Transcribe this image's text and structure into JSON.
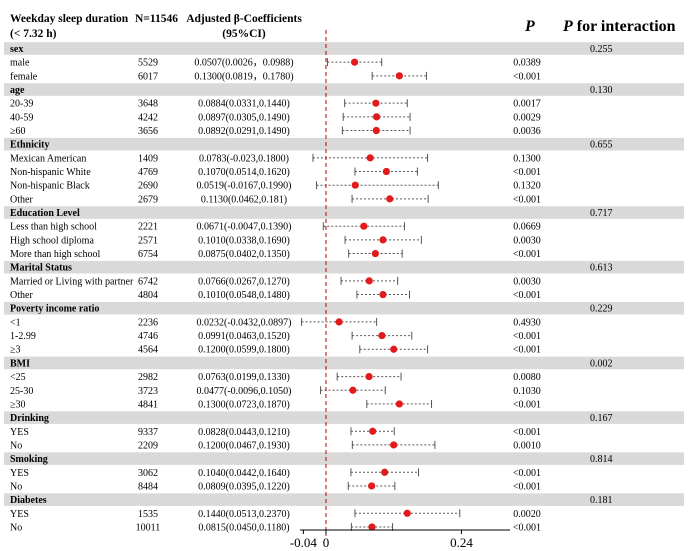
{
  "chart_data": {
    "type": "forest",
    "headers": {
      "col1_line1": "Weekday sleep duration",
      "col1_line2": "(< 7.32 h)",
      "col2": "N=11546",
      "col3_line1": "Adjusted β-Coefficients",
      "col3_line2": "(95%CI)",
      "col4": "P",
      "col5_prefix": "P",
      "col5_suffix": " for interaction"
    },
    "x_ticks": [
      "-0.04",
      "0",
      "0.24"
    ],
    "x_tick_values": [
      -0.04,
      0,
      0.24
    ],
    "xlim": [
      -0.046,
      0.326
    ],
    "reference_line": 0,
    "colors": {
      "group_band": "#d9d9d9",
      "point": "#e31a1c",
      "ci_line": "#555555",
      "reference_line": "#c00000"
    },
    "groups": [
      {
        "name": "sex",
        "p_interaction": "0.255",
        "rows": [
          {
            "label": "male",
            "n": "5529",
            "ci_text": "0.0507(0.0026，0.0988)",
            "beta": 0.0507,
            "lo": 0.0026,
            "hi": 0.0988,
            "p": "0.0389"
          },
          {
            "label": "female",
            "n": "6017",
            "ci_text": "0.1300(0.0819，0.1780)",
            "beta": 0.13,
            "lo": 0.0819,
            "hi": 0.178,
            "p": "<0.001"
          }
        ]
      },
      {
        "name": "age",
        "p_interaction": "0.130",
        "rows": [
          {
            "label": "20-39",
            "n": "3648",
            "ci_text": "0.0884(0.0331,0.1440)",
            "beta": 0.0884,
            "lo": 0.0331,
            "hi": 0.144,
            "p": "0.0017"
          },
          {
            "label": "40-59",
            "n": "4242",
            "ci_text": "0.0897(0.0305,0.1490)",
            "beta": 0.0897,
            "lo": 0.0305,
            "hi": 0.149,
            "p": "0.0029"
          },
          {
            "label": "≥60",
            "n": "3656",
            "ci_text": "0.0892(0.0291,0.1490)",
            "beta": 0.0892,
            "lo": 0.0291,
            "hi": 0.149,
            "p": "0.0036"
          }
        ]
      },
      {
        "name": "Ethnicity",
        "p_interaction": "0.655",
        "rows": [
          {
            "label": "Mexican American",
            "n": "1409",
            "ci_text": "0.0783(-0.023,0.1800)",
            "beta": 0.0783,
            "lo": -0.023,
            "hi": 0.18,
            "p": "0.1300"
          },
          {
            "label": "Non-hispanic White",
            "n": "4769",
            "ci_text": "0.1070(0.0514,0.1620)",
            "beta": 0.107,
            "lo": 0.0514,
            "hi": 0.162,
            "p": "<0.001"
          },
          {
            "label": "Non-hispanic Black",
            "n": "2690",
            "ci_text": "0.0519(-0.0167,0.1990)",
            "beta": 0.0519,
            "lo": -0.0167,
            "hi": 0.199,
            "p": "0.1320"
          },
          {
            "label": "Other",
            "n": "2679",
            "ci_text": "0.1130(0.0462,0.181)",
            "beta": 0.113,
            "lo": 0.0462,
            "hi": 0.181,
            "p": "<0.001"
          }
        ]
      },
      {
        "name": "Education Level",
        "p_interaction": "0.717",
        "rows": [
          {
            "label": "Less than high school",
            "n": "2221",
            "ci_text": "0.0671(-0.0047,0.1390)",
            "beta": 0.0671,
            "lo": -0.0047,
            "hi": 0.139,
            "p": "0.0669"
          },
          {
            "label": "High school diploma",
            "n": "2571",
            "ci_text": "0.1010(0.0338,0.1690)",
            "beta": 0.101,
            "lo": 0.0338,
            "hi": 0.169,
            "p": "0.0030"
          },
          {
            "label": "More than high school",
            "n": "6754",
            "ci_text": "0.0875(0.0402,0.1350)",
            "beta": 0.0875,
            "lo": 0.0402,
            "hi": 0.135,
            "p": "<0.001"
          }
        ]
      },
      {
        "name": "Marital Status",
        "p_interaction": "0.613",
        "rows": [
          {
            "label": "Married or Living with partner",
            "n": "6742",
            "ci_text": "0.0766(0.0267,0.1270)",
            "beta": 0.0766,
            "lo": 0.0267,
            "hi": 0.127,
            "p": "0.0030"
          },
          {
            "label": "Other",
            "n": "4804",
            "ci_text": "0.1010(0.0548,0.1480)",
            "beta": 0.101,
            "lo": 0.0548,
            "hi": 0.148,
            "p": "<0.001"
          }
        ]
      },
      {
        "name": "Poverty income ratio",
        "p_interaction": "0.229",
        "rows": [
          {
            "label": "<1",
            "n": "2236",
            "ci_text": "0.0232(-0.0432,0.0897)",
            "beta": 0.0232,
            "lo": -0.0432,
            "hi": 0.0897,
            "p": "0.4930"
          },
          {
            "label": "1-2.99",
            "n": "4746",
            "ci_text": "0.0991(0.0463,0.1520)",
            "beta": 0.0991,
            "lo": 0.0463,
            "hi": 0.152,
            "p": "<0.001"
          },
          {
            "label": "≥3",
            "n": "4564",
            "ci_text": "0.1200(0.0599,0.1800)",
            "beta": 0.12,
            "lo": 0.0599,
            "hi": 0.18,
            "p": "<0.001"
          }
        ]
      },
      {
        "name": "BMI",
        "p_interaction": "0.002",
        "rows": [
          {
            "label": "<25",
            "n": "2982",
            "ci_text": "0.0763(0.0199,0.1330)",
            "beta": 0.0763,
            "lo": 0.0199,
            "hi": 0.133,
            "p": "0.0080"
          },
          {
            "label": "25-30",
            "n": "3723",
            "ci_text": "0.0477(-0.0096,0.1050)",
            "beta": 0.0477,
            "lo": -0.0096,
            "hi": 0.105,
            "p": "0.1030"
          },
          {
            "label": "≥30",
            "n": "4841",
            "ci_text": "0.1300(0.0723,0.1870)",
            "beta": 0.13,
            "lo": 0.0723,
            "hi": 0.187,
            "p": "<0.001"
          }
        ]
      },
      {
        "name": "Drinking",
        "p_interaction": "0.167",
        "rows": [
          {
            "label": "YES",
            "n": "9337",
            "ci_text": "0.0828(0.0443,0.1210)",
            "beta": 0.0828,
            "lo": 0.0443,
            "hi": 0.121,
            "p": "<0.001"
          },
          {
            "label": "No",
            "n": "2209",
            "ci_text": "0.1200(0.0467,0.1930)",
            "beta": 0.12,
            "lo": 0.0467,
            "hi": 0.193,
            "p": "0.0010"
          }
        ]
      },
      {
        "name": "Smoking",
        "p_interaction": "0.814",
        "rows": [
          {
            "label": "YES",
            "n": "3062",
            "ci_text": "0.1040(0.0442,0.1640)",
            "beta": 0.104,
            "lo": 0.0442,
            "hi": 0.164,
            "p": "<0.001"
          },
          {
            "label": "No",
            "n": "8484",
            "ci_text": "0.0809(0.0395,0.1220)",
            "beta": 0.0809,
            "lo": 0.0395,
            "hi": 0.122,
            "p": "<0.001"
          }
        ]
      },
      {
        "name": "Diabetes",
        "p_interaction": "0.181",
        "rows": [
          {
            "label": "YES",
            "n": "1535",
            "ci_text": "0.1440(0.0513,0.2370)",
            "beta": 0.144,
            "lo": 0.0513,
            "hi": 0.237,
            "p": "0.0020"
          },
          {
            "label": "No",
            "n": "10011",
            "ci_text": "0.0815(0.0450,0.1180)",
            "beta": 0.0815,
            "lo": 0.045,
            "hi": 0.118,
            "p": "<0.001"
          }
        ]
      }
    ]
  }
}
